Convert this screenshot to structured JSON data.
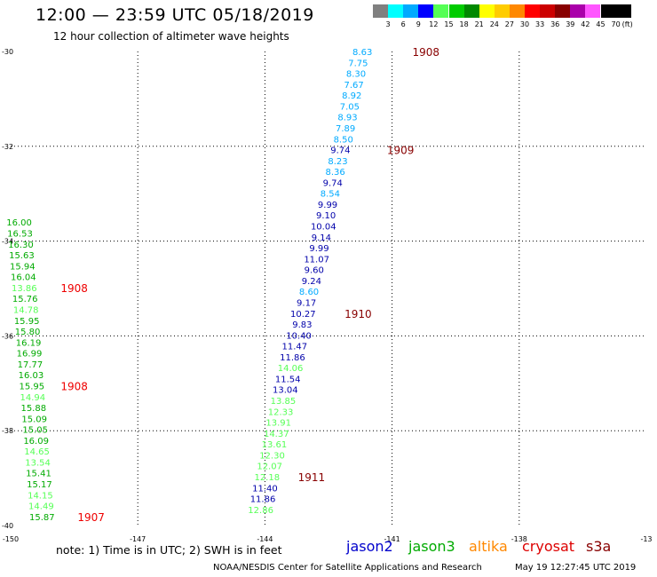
{
  "header": {
    "title": "12:00 — 23:59 UTC 05/18/2019",
    "subtitle": "12 hour collection of altimeter wave heights"
  },
  "legend": {
    "unit": "(ft)",
    "swatches": [
      {
        "label": "3",
        "color": "#808080"
      },
      {
        "label": "6",
        "color": "#00ffff"
      },
      {
        "label": "9",
        "color": "#00aaff"
      },
      {
        "label": "12",
        "color": "#0000ff"
      },
      {
        "label": "15",
        "color": "#55ff55"
      },
      {
        "label": "18",
        "color": "#00cc00"
      },
      {
        "label": "21",
        "color": "#008800"
      },
      {
        "label": "24",
        "color": "#ffff00"
      },
      {
        "label": "27",
        "color": "#ffcc00"
      },
      {
        "label": "30",
        "color": "#ff8800"
      },
      {
        "label": "33",
        "color": "#ff0000"
      },
      {
        "label": "36",
        "color": "#cc0000"
      },
      {
        "label": "39",
        "color": "#880000"
      },
      {
        "label": "42",
        "color": "#aa00aa"
      },
      {
        "label": "45",
        "color": "#ff55ff"
      },
      {
        "label": "70",
        "color": "#000000"
      },
      {
        "label": "",
        "color": "#000000"
      }
    ]
  },
  "axes": {
    "lon_ticks": [
      "-150",
      "-147",
      "-144",
      "-141",
      "-138",
      "-13"
    ],
    "lat_ticks": [
      "-30",
      "-32",
      "-34",
      "-36",
      "-38",
      "-40"
    ]
  },
  "tracks": [
    {
      "color": "#00aaff",
      "x": -141.7,
      "y": -30.0,
      "value": "8.63"
    },
    {
      "color": "#00aaff",
      "x": -141.8,
      "y": -30.23,
      "value": "7.75"
    },
    {
      "color": "#00aaff",
      "x": -141.85,
      "y": -30.46,
      "value": "8.30"
    },
    {
      "color": "#00aaff",
      "x": -141.9,
      "y": -30.69,
      "value": "7.67"
    },
    {
      "color": "#00aaff",
      "x": -141.95,
      "y": -30.92,
      "value": "8.92"
    },
    {
      "color": "#00aaff",
      "x": -142.0,
      "y": -31.15,
      "value": "7.05"
    },
    {
      "color": "#00aaff",
      "x": -142.05,
      "y": -31.38,
      "value": "8.93"
    },
    {
      "color": "#00aaff",
      "x": -142.1,
      "y": -31.61,
      "value": "7.89"
    },
    {
      "color": "#00aaff",
      "x": -142.15,
      "y": -31.84,
      "value": "8.50"
    },
    {
      "color": "#0000aa",
      "x": -142.22,
      "y": -32.07,
      "value": "9.74"
    },
    {
      "color": "#00aaff",
      "x": -142.28,
      "y": -32.3,
      "value": "8.23"
    },
    {
      "color": "#00aaff",
      "x": -142.34,
      "y": -32.53,
      "value": "8.36"
    },
    {
      "color": "#0000aa",
      "x": -142.4,
      "y": -32.76,
      "value": "9.74"
    },
    {
      "color": "#00aaff",
      "x": -142.46,
      "y": -32.99,
      "value": "8.54"
    },
    {
      "color": "#0000aa",
      "x": -142.52,
      "y": -33.22,
      "value": "9.99"
    },
    {
      "color": "#0000aa",
      "x": -142.56,
      "y": -33.45,
      "value": "9.10"
    },
    {
      "color": "#0000aa",
      "x": -142.62,
      "y": -33.68,
      "value": "10.04"
    },
    {
      "color": "#0000aa",
      "x": -142.67,
      "y": -33.91,
      "value": "9.14"
    },
    {
      "color": "#0000aa",
      "x": -142.72,
      "y": -34.14,
      "value": "9.99"
    },
    {
      "color": "#0000aa",
      "x": -142.78,
      "y": -34.37,
      "value": "11.07"
    },
    {
      "color": "#0000aa",
      "x": -142.84,
      "y": -34.6,
      "value": "9.60"
    },
    {
      "color": "#0000aa",
      "x": -142.9,
      "y": -34.83,
      "value": "9.24"
    },
    {
      "color": "#00aaff",
      "x": -142.96,
      "y": -35.06,
      "value": "8.60"
    },
    {
      "color": "#0000aa",
      "x": -143.02,
      "y": -35.29,
      "value": "9.17"
    },
    {
      "color": "#0000aa",
      "x": -143.1,
      "y": -35.52,
      "value": "10.27"
    },
    {
      "color": "#0000aa",
      "x": -143.12,
      "y": -35.75,
      "value": "9.83"
    },
    {
      "color": "#0000aa",
      "x": -143.2,
      "y": -35.98,
      "value": "10.40"
    },
    {
      "color": "#0000aa",
      "x": -143.3,
      "y": -36.21,
      "value": "11.47"
    },
    {
      "color": "#0000aa",
      "x": -143.35,
      "y": -36.44,
      "value": "11.86"
    },
    {
      "color": "#55ff55",
      "x": -143.4,
      "y": -36.67,
      "value": "14.06"
    },
    {
      "color": "#0000aa",
      "x": -143.46,
      "y": -36.9,
      "value": "11.54"
    },
    {
      "color": "#0000aa",
      "x": -143.52,
      "y": -37.13,
      "value": "13.04"
    },
    {
      "color": "#55ff55",
      "x": -143.57,
      "y": -37.36,
      "value": "13.85"
    },
    {
      "color": "#55ff55",
      "x": -143.63,
      "y": -37.59,
      "value": "12.33"
    },
    {
      "color": "#55ff55",
      "x": -143.68,
      "y": -37.82,
      "value": "13.91"
    },
    {
      "color": "#55ff55",
      "x": -143.73,
      "y": -38.05,
      "value": "14.37"
    },
    {
      "color": "#55ff55",
      "x": -143.78,
      "y": -38.28,
      "value": "13.61"
    },
    {
      "color": "#55ff55",
      "x": -143.83,
      "y": -38.51,
      "value": "12.30"
    },
    {
      "color": "#55ff55",
      "x": -143.89,
      "y": -38.74,
      "value": "12.07"
    },
    {
      "color": "#55ff55",
      "x": -143.95,
      "y": -38.97,
      "value": "12.18"
    },
    {
      "color": "#0000aa",
      "x": -144.0,
      "y": -39.2,
      "value": "11.40"
    },
    {
      "color": "#0000aa",
      "x": -144.05,
      "y": -39.43,
      "value": "11.86"
    },
    {
      "color": "#55ff55",
      "x": -144.1,
      "y": -39.66,
      "value": "12.86"
    },
    {
      "color": "#00aa00",
      "x": -149.8,
      "y": -33.6,
      "value": "16.00"
    },
    {
      "color": "#00aa00",
      "x": -149.78,
      "y": -33.83,
      "value": "16.53"
    },
    {
      "color": "#00aa00",
      "x": -149.76,
      "y": -34.06,
      "value": "16.30"
    },
    {
      "color": "#00aa00",
      "x": -149.74,
      "y": -34.29,
      "value": "15.63"
    },
    {
      "color": "#00aa00",
      "x": -149.72,
      "y": -34.52,
      "value": "15.94"
    },
    {
      "color": "#00aa00",
      "x": -149.7,
      "y": -34.75,
      "value": "16.04"
    },
    {
      "color": "#55ff55",
      "x": -149.68,
      "y": -34.98,
      "value": "13.86"
    },
    {
      "color": "#00aa00",
      "x": -149.66,
      "y": -35.21,
      "value": "15.76"
    },
    {
      "color": "#55ff55",
      "x": -149.64,
      "y": -35.44,
      "value": "14.78"
    },
    {
      "color": "#00aa00",
      "x": -149.62,
      "y": -35.67,
      "value": "15.95"
    },
    {
      "color": "#00aa00",
      "x": -149.6,
      "y": -35.9,
      "value": "15.80"
    },
    {
      "color": "#00aa00",
      "x": -149.58,
      "y": -36.13,
      "value": "16.19"
    },
    {
      "color": "#00aa00",
      "x": -149.56,
      "y": -36.36,
      "value": "16.99"
    },
    {
      "color": "#00aa00",
      "x": -149.54,
      "y": -36.59,
      "value": "17.77"
    },
    {
      "color": "#00aa00",
      "x": -149.52,
      "y": -36.82,
      "value": "16.03"
    },
    {
      "color": "#00aa00",
      "x": -149.5,
      "y": -37.05,
      "value": "15.95"
    },
    {
      "color": "#55ff55",
      "x": -149.48,
      "y": -37.28,
      "value": "14.94"
    },
    {
      "color": "#00aa00",
      "x": -149.46,
      "y": -37.51,
      "value": "15.88"
    },
    {
      "color": "#00aa00",
      "x": -149.44,
      "y": -37.74,
      "value": "15.09"
    },
    {
      "color": "#00aa00",
      "x": -149.42,
      "y": -37.97,
      "value": "15.05"
    },
    {
      "color": "#00aa00",
      "x": -149.4,
      "y": -38.2,
      "value": "16.09"
    },
    {
      "color": "#55ff55",
      "x": -149.38,
      "y": -38.43,
      "value": "14.65"
    },
    {
      "color": "#55ff55",
      "x": -149.36,
      "y": -38.66,
      "value": "13.54"
    },
    {
      "color": "#00aa00",
      "x": -149.34,
      "y": -38.89,
      "value": "15.41"
    },
    {
      "color": "#00aa00",
      "x": -149.32,
      "y": -39.12,
      "value": "15.17"
    },
    {
      "color": "#55ff55",
      "x": -149.3,
      "y": -39.35,
      "value": "14.15"
    },
    {
      "color": "#55ff55",
      "x": -149.28,
      "y": -39.58,
      "value": "14.49"
    },
    {
      "color": "#00aa00",
      "x": -149.26,
      "y": -39.81,
      "value": "15.87"
    }
  ],
  "time_labels": [
    {
      "x": -140.2,
      "y": -30.0,
      "value": "1908",
      "color": "#880000"
    },
    {
      "x": -140.8,
      "y": -32.07,
      "value": "1909",
      "color": "#880000"
    },
    {
      "x": -141.8,
      "y": -35.52,
      "value": "1910",
      "color": "#880000"
    },
    {
      "x": -142.9,
      "y": -38.97,
      "value": "1911",
      "color": "#880000"
    },
    {
      "x": -148.5,
      "y": -34.98,
      "value": "1908",
      "color": "#ee0000"
    },
    {
      "x": -148.5,
      "y": -37.05,
      "value": "1908",
      "color": "#ee0000"
    },
    {
      "x": -148.1,
      "y": -39.81,
      "value": "1907",
      "color": "#ee0000"
    }
  ],
  "note": "note: 1) Time is in UTC; 2) SWH is in feet",
  "satellites": [
    {
      "name": "jason2",
      "color": "#0000cc"
    },
    {
      "name": "jason3",
      "color": "#00aa00"
    },
    {
      "name": "altika",
      "color": "#ff8800"
    },
    {
      "name": "cryosat",
      "color": "#dd0000"
    },
    {
      "name": "s3a",
      "color": "#880000"
    }
  ],
  "footer": {
    "org": "NOAA/NESDIS Center for Satellite Applications and Research",
    "timestamp": "May 19 12:27:45 UTC 2019"
  }
}
